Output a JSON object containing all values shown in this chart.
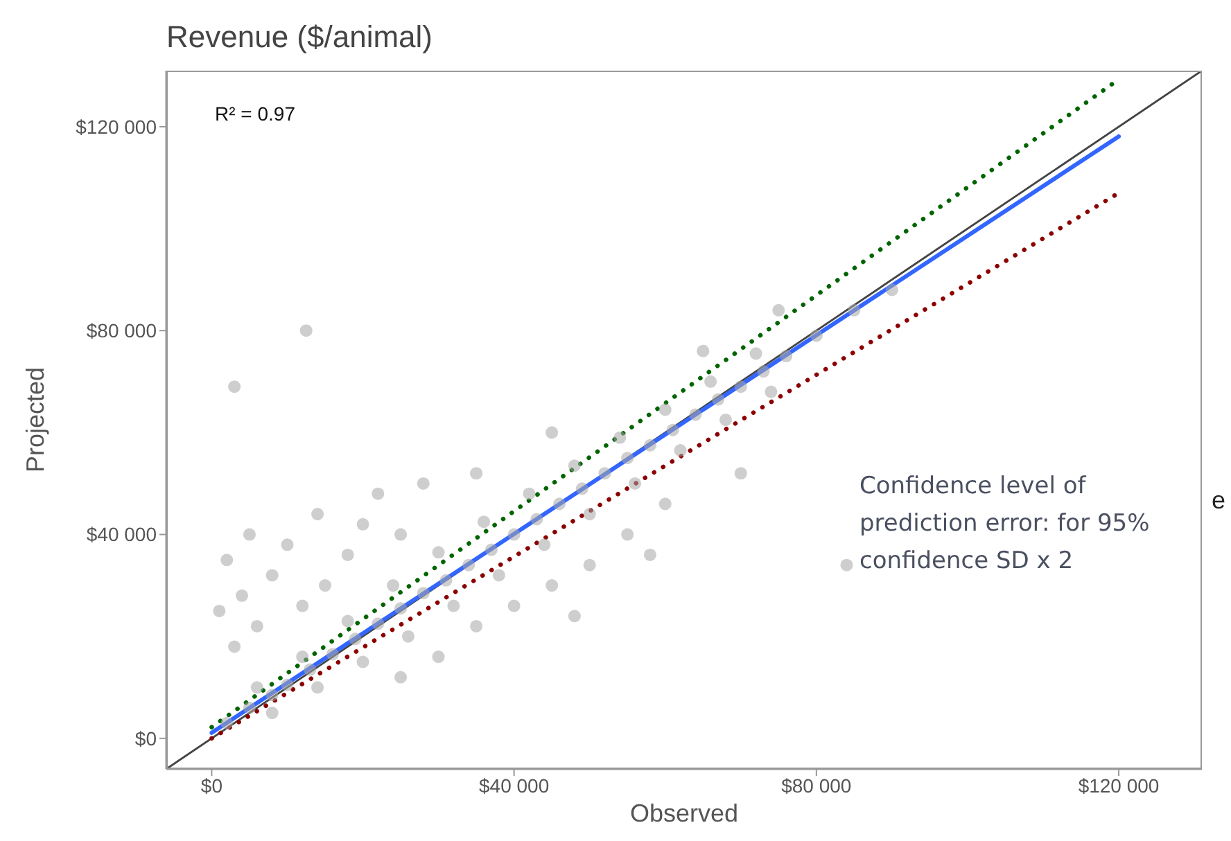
{
  "chart_data": {
    "type": "scatter",
    "title": "Revenue ($/animal)",
    "xlabel": "Observed",
    "ylabel": "Projected",
    "xlim": [
      -6000,
      131000
    ],
    "ylim": [
      -6000,
      131000
    ],
    "xticks": [
      {
        "value": 0,
        "label": "$0"
      },
      {
        "value": 40000,
        "label": "$40 000"
      },
      {
        "value": 80000,
        "label": "$80 000"
      },
      {
        "value": 120000,
        "label": "$120 000"
      }
    ],
    "yticks": [
      {
        "value": 0,
        "label": "$0"
      },
      {
        "value": 40000,
        "label": "$40 000"
      },
      {
        "value": 80000,
        "label": "$80 000"
      },
      {
        "value": 120000,
        "label": "$120 000"
      }
    ],
    "grid": false,
    "annotations": [
      "R² = 0.97",
      "Confidence level of prediction error: for 95% confidence SD x 2",
      "e"
    ],
    "series": [
      {
        "color": "#a6a6a6",
        "marker": "circle",
        "x": [
          2000,
          5000,
          8000,
          10000,
          13000,
          16000,
          19000,
          22000,
          25000,
          28000,
          31000,
          34000,
          37000,
          40000,
          43000,
          46000,
          49000,
          52000,
          55000,
          58000,
          61000,
          64000,
          67000,
          70000,
          73000,
          76000,
          80000,
          85000,
          90000,
          6000,
          12000,
          18000,
          24000,
          30000,
          36000,
          42000,
          48000,
          54000,
          60000,
          66000,
          72000,
          8000,
          14000,
          20000,
          26000,
          32000,
          38000,
          44000,
          50000,
          56000,
          62000,
          68000,
          74000,
          1000,
          2000,
          3000,
          4000,
          5000,
          6000,
          8000,
          10000,
          12000,
          14000,
          15000,
          18000,
          20000,
          22000,
          25000,
          28000,
          12500,
          3000,
          35000,
          45000,
          25000,
          30000,
          35000,
          40000,
          45000,
          50000,
          55000,
          60000,
          70000,
          58000,
          84000,
          48000,
          65000,
          75000
        ],
        "values": [
          3000,
          6000,
          8500,
          10500,
          13500,
          16500,
          19500,
          22500,
          25500,
          28500,
          31000,
          34000,
          37000,
          40000,
          43000,
          46000,
          49000,
          52000,
          55000,
          57500,
          60500,
          63500,
          66500,
          69000,
          72000,
          75000,
          79000,
          84000,
          88000,
          10000,
          16000,
          23000,
          30000,
          36500,
          42500,
          48000,
          53500,
          59000,
          64500,
          70000,
          75500,
          5000,
          10000,
          15000,
          20000,
          26000,
          32000,
          38000,
          44000,
          50000,
          56500,
          62500,
          68000,
          25000,
          35000,
          18000,
          28000,
          40000,
          22000,
          32000,
          38000,
          26000,
          44000,
          30000,
          36000,
          42000,
          48000,
          40000,
          50000,
          80000,
          69000,
          52000,
          60000,
          12000,
          16000,
          22000,
          26000,
          30000,
          34000,
          40000,
          46000,
          52000,
          36000,
          34000,
          24000,
          76000,
          84000
        ]
      },
      {
        "type": "line",
        "color": "#444444",
        "line_style": "solid",
        "x": [
          -6000,
          131000
        ],
        "values": [
          -6000,
          131000
        ]
      },
      {
        "type": "line",
        "color": "#3366ff",
        "line_style": "solid",
        "x": [
          0,
          120000
        ],
        "values": [
          1100,
          118100
        ]
      },
      {
        "type": "line",
        "color": "#006400",
        "line_style": "dotted",
        "x": [
          0,
          120000
        ],
        "values": [
          2200,
          129300
        ]
      },
      {
        "type": "line",
        "color": "#8b0000",
        "line_style": "dotted",
        "x": [
          0,
          120000
        ],
        "values": [
          0,
          107000
        ]
      }
    ]
  }
}
